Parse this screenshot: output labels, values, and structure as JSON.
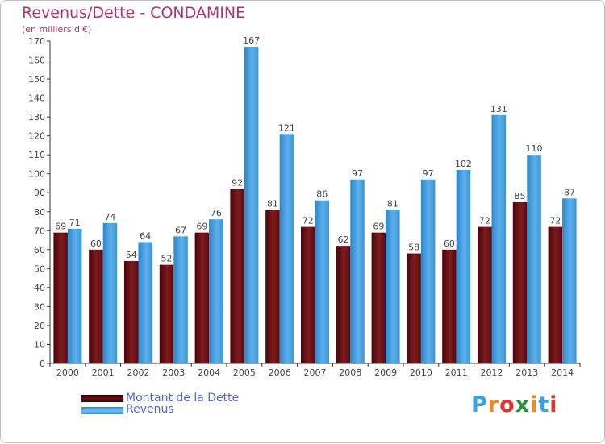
{
  "header": {
    "title": "Revenus/Dette - CONDAMINE",
    "subtitle": "(en milliers d'€)"
  },
  "legend": {
    "items": [
      {
        "label": "Montant de la Dette",
        "color": "#6b0f12"
      },
      {
        "label": "Revenus",
        "color": "#3d97d8"
      }
    ]
  },
  "logo": {
    "letters": [
      "P",
      "r",
      "o",
      "x",
      "i",
      "t",
      "i"
    ],
    "colors": [
      "#3aa0e0",
      "#f08c1a",
      "#e5332a",
      "#2a8f3f",
      "#f08c1a",
      "#3aa0e0",
      "#e5332a"
    ]
  },
  "chart_data": {
    "type": "bar",
    "title": "Revenus/Dette - CONDAMINE",
    "ylabel": "(en milliers d'€)",
    "xlabel": "",
    "categories": [
      "2000",
      "2001",
      "2002",
      "2003",
      "2004",
      "2005",
      "2006",
      "2007",
      "2008",
      "2009",
      "2010",
      "2011",
      "2012",
      "2013",
      "2014"
    ],
    "series": [
      {
        "name": "Montant de la Dette",
        "color": "#6b0f12",
        "values": [
          69,
          60,
          54,
          52,
          69,
          92,
          81,
          72,
          62,
          69,
          58,
          60,
          72,
          85,
          72
        ]
      },
      {
        "name": "Revenus",
        "color": "#3d97d8",
        "values": [
          71,
          74,
          64,
          67,
          76,
          167,
          121,
          86,
          97,
          81,
          97,
          102,
          131,
          110,
          87
        ]
      }
    ],
    "ylim": [
      0,
      170
    ],
    "ytick_step": 10,
    "grid": false,
    "legend": "bottom-left"
  }
}
